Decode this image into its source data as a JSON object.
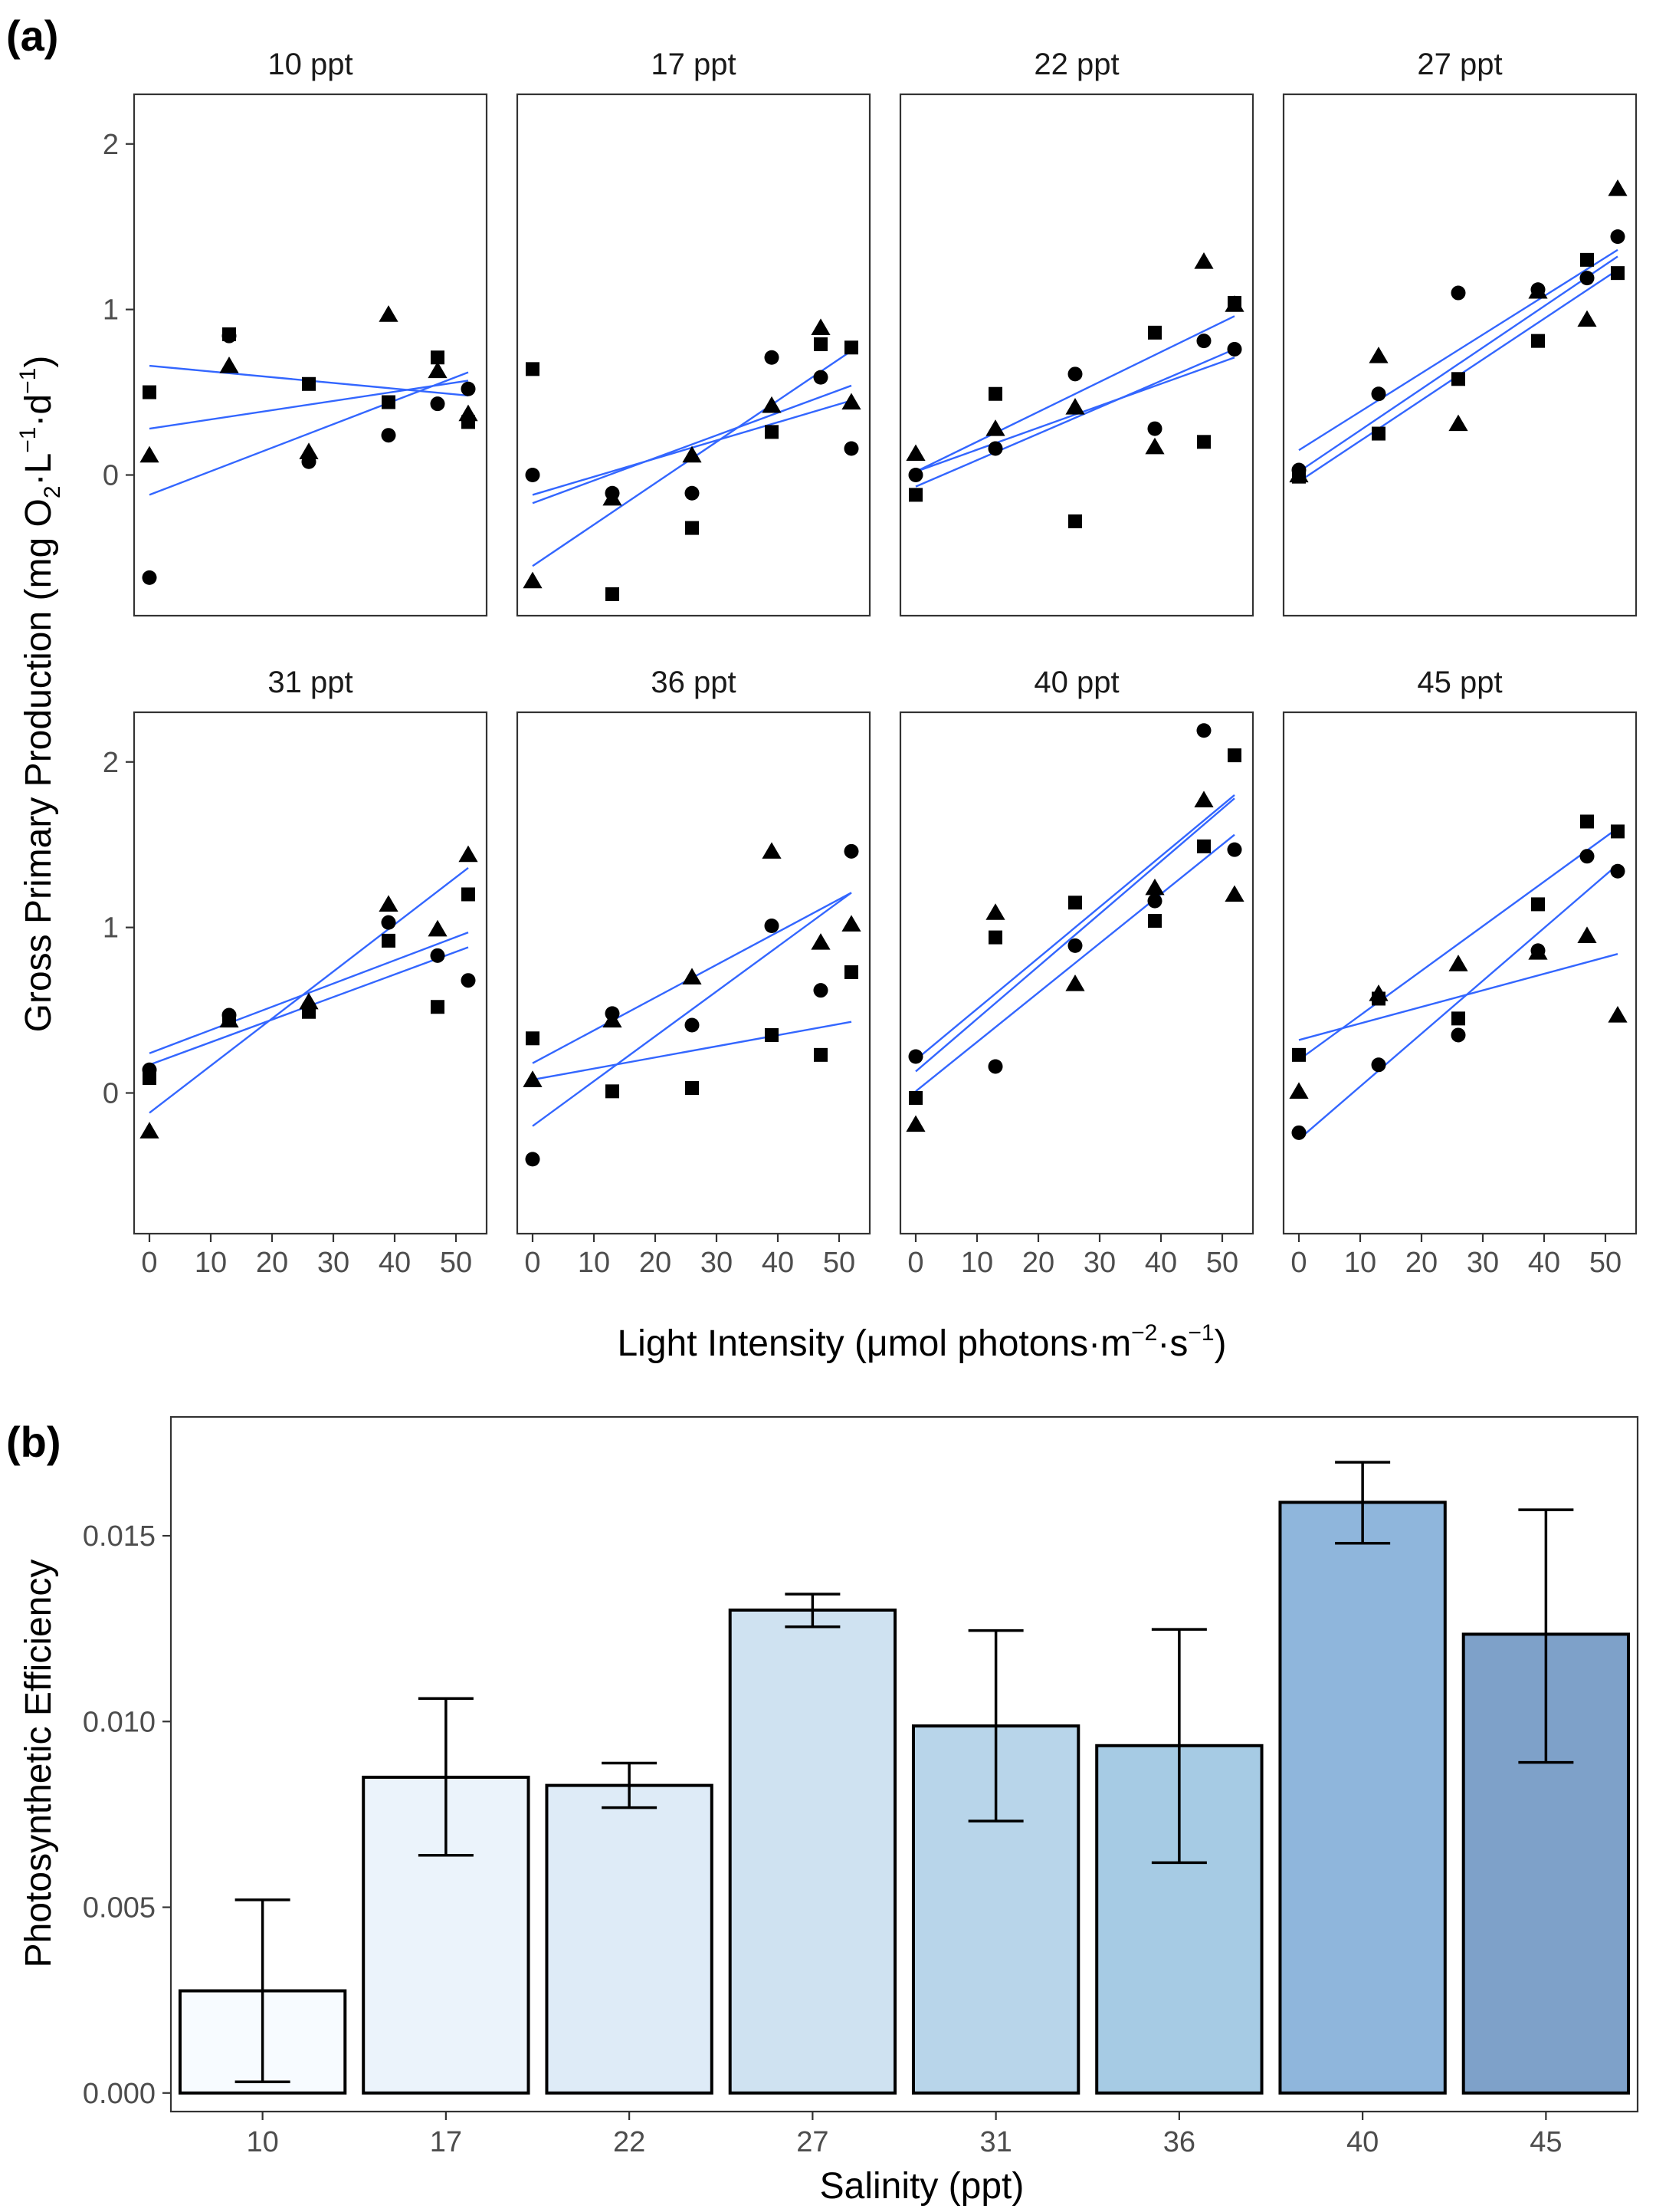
{
  "figure": {
    "panel_a_label": "(a)",
    "panel_b_label": "(b)"
  },
  "chart_data": [
    {
      "type": "scatter",
      "panel": "(a)",
      "title": "",
      "xlabel_parts": {
        "main": "Light Intensity (μmol photons·m",
        "sup1": "−2",
        "mid": "·s",
        "sup2": "−1",
        "end": ")"
      },
      "ylabel_parts": {
        "main": "Gross Primary Production (mg O",
        "sub": "2",
        "mid1": "·L",
        "sup1": "−1",
        "mid2": "·d",
        "sup2": "−1",
        "end": ")"
      },
      "xlim": [
        -2.5,
        55
      ],
      "ylim": [
        -0.85,
        2.3
      ],
      "xticks": [
        0,
        10,
        20,
        30,
        40,
        50
      ],
      "yticks": [
        0,
        1,
        2
      ],
      "x_levels": [
        0,
        13,
        26,
        39,
        47,
        52
      ],
      "marker_shapes": [
        "circle",
        "square",
        "triangle"
      ],
      "facets": [
        {
          "label": "10 ppt",
          "points": {
            "circle": [
              -0.62,
              0.84,
              0.08,
              0.24,
              0.43,
              0.52
            ],
            "square": [
              0.5,
              0.85,
              0.55,
              0.44,
              0.71,
              0.32
            ],
            "triangle": [
              0.12,
              0.66,
              0.14,
              0.97,
              0.63,
              0.37
            ]
          },
          "lines": [
            {
              "y0": -0.12,
              "y1": 0.62
            },
            {
              "y0": 0.28,
              "y1": 0.57
            },
            {
              "y0": 0.66,
              "y1": 0.48
            }
          ]
        },
        {
          "label": "17 ppt",
          "points": {
            "circle": [
              0.0,
              -0.11,
              -0.11,
              0.71,
              0.59,
              0.16
            ],
            "square": [
              0.64,
              -0.72,
              -0.32,
              0.26,
              0.79,
              0.77
            ],
            "triangle": [
              -0.64,
              -0.14,
              0.12,
              0.42,
              0.89,
              0.44
            ]
          },
          "lines": [
            {
              "y0": -0.55,
              "y1": 0.75
            },
            {
              "y0": -0.12,
              "y1": 0.45
            },
            {
              "y0": -0.17,
              "y1": 0.54
            }
          ]
        },
        {
          "label": "22 ppt",
          "points": {
            "circle": [
              0.0,
              0.16,
              0.61,
              0.28,
              0.81,
              0.76
            ],
            "square": [
              -0.12,
              0.49,
              -0.28,
              0.86,
              0.2,
              1.04
            ],
            "triangle": [
              0.13,
              0.28,
              0.41,
              0.17,
              1.29,
              1.03
            ]
          },
          "lines": [
            {
              "y0": 0.02,
              "y1": 0.96
            },
            {
              "y0": 0.02,
              "y1": 0.71
            },
            {
              "y0": -0.07,
              "y1": 0.76
            }
          ]
        },
        {
          "label": "27 ppt",
          "points": {
            "circle": [
              0.03,
              0.49,
              1.1,
              1.12,
              1.19,
              1.44
            ],
            "square": [
              -0.01,
              0.25,
              0.58,
              0.81,
              1.3,
              1.22
            ],
            "triangle": [
              0.0,
              0.72,
              0.31,
              1.11,
              0.94,
              1.73
            ]
          },
          "lines": [
            {
              "y0": 0.15,
              "y1": 1.36
            },
            {
              "y0": 0.02,
              "y1": 1.32
            },
            {
              "y0": -0.04,
              "y1": 1.24
            }
          ]
        },
        {
          "label": "31 ppt",
          "points": {
            "circle": [
              0.14,
              0.47,
              0.52,
              1.03,
              0.83,
              0.68
            ],
            "square": [
              0.09,
              0.44,
              0.49,
              0.92,
              0.52,
              1.2
            ],
            "triangle": [
              -0.23,
              0.44,
              0.55,
              1.14,
              0.99,
              1.44
            ]
          },
          "lines": [
            {
              "y0": -0.12,
              "y1": 1.36
            },
            {
              "y0": 0.24,
              "y1": 0.97
            },
            {
              "y0": 0.17,
              "y1": 0.88
            }
          ]
        },
        {
          "label": "36 ppt",
          "points": {
            "circle": [
              -0.4,
              0.48,
              0.41,
              1.01,
              0.62,
              1.46
            ],
            "square": [
              0.33,
              0.01,
              0.03,
              0.35,
              0.23,
              0.73
            ],
            "triangle": [
              0.08,
              0.44,
              0.7,
              1.46,
              0.91,
              1.02
            ]
          },
          "lines": [
            {
              "y0": -0.2,
              "y1": 1.21
            },
            {
              "y0": 0.18,
              "y1": 1.21
            },
            {
              "y0": 0.08,
              "y1": 0.43
            }
          ]
        },
        {
          "label": "40 ppt",
          "points": {
            "circle": [
              0.22,
              0.16,
              0.89,
              1.16,
              2.19,
              1.47
            ],
            "square": [
              -0.03,
              0.94,
              1.15,
              1.04,
              1.49,
              2.04
            ],
            "triangle": [
              -0.19,
              1.09,
              0.66,
              1.24,
              1.77,
              1.2
            ]
          },
          "lines": [
            {
              "y0": 0.2,
              "y1": 1.8
            },
            {
              "y0": 0.13,
              "y1": 1.78
            },
            {
              "y0": 0.01,
              "y1": 1.56
            }
          ]
        },
        {
          "label": "45 ppt",
          "points": {
            "circle": [
              -0.24,
              0.17,
              0.35,
              0.86,
              1.43,
              1.34
            ],
            "square": [
              0.23,
              0.57,
              0.45,
              1.14,
              1.64,
              1.58
            ],
            "triangle": [
              0.01,
              0.6,
              0.78,
              0.85,
              0.95,
              0.47
            ]
          },
          "lines": [
            {
              "y0": -0.28,
              "y1": 1.38
            },
            {
              "y0": 0.2,
              "y1": 1.6
            },
            {
              "y0": 0.32,
              "y1": 0.84
            }
          ]
        }
      ]
    },
    {
      "type": "bar",
      "panel": "(b)",
      "title": "",
      "xlabel": "Salinity (ppt)",
      "ylabel": "Photosynthetic Efficiency",
      "categories": [
        "10",
        "17",
        "22",
        "27",
        "31",
        "36",
        "40",
        "45"
      ],
      "values": [
        0.00275,
        0.0085,
        0.00828,
        0.013,
        0.00988,
        0.00935,
        0.0159,
        0.01235
      ],
      "error_low": [
        0.0003,
        0.0064,
        0.00768,
        0.01255,
        0.00732,
        0.0062,
        0.0148,
        0.0089
      ],
      "error_high": [
        0.0052,
        0.01062,
        0.00888,
        0.01343,
        0.01245,
        0.01248,
        0.01698,
        0.0157
      ],
      "ylim": [
        -0.0005,
        0.0182
      ],
      "yticks": [
        "0.000",
        "0.005",
        "0.010",
        "0.015"
      ],
      "ytick_values": [
        0,
        0.005,
        0.01,
        0.015
      ],
      "bar_colors": [
        "#f7fbff",
        "#ebf3fb",
        "#deebf7",
        "#cfe2f1",
        "#b8d5ea",
        "#a6cbe4",
        "#8fb6dc",
        "#7ea1c9"
      ]
    }
  ]
}
